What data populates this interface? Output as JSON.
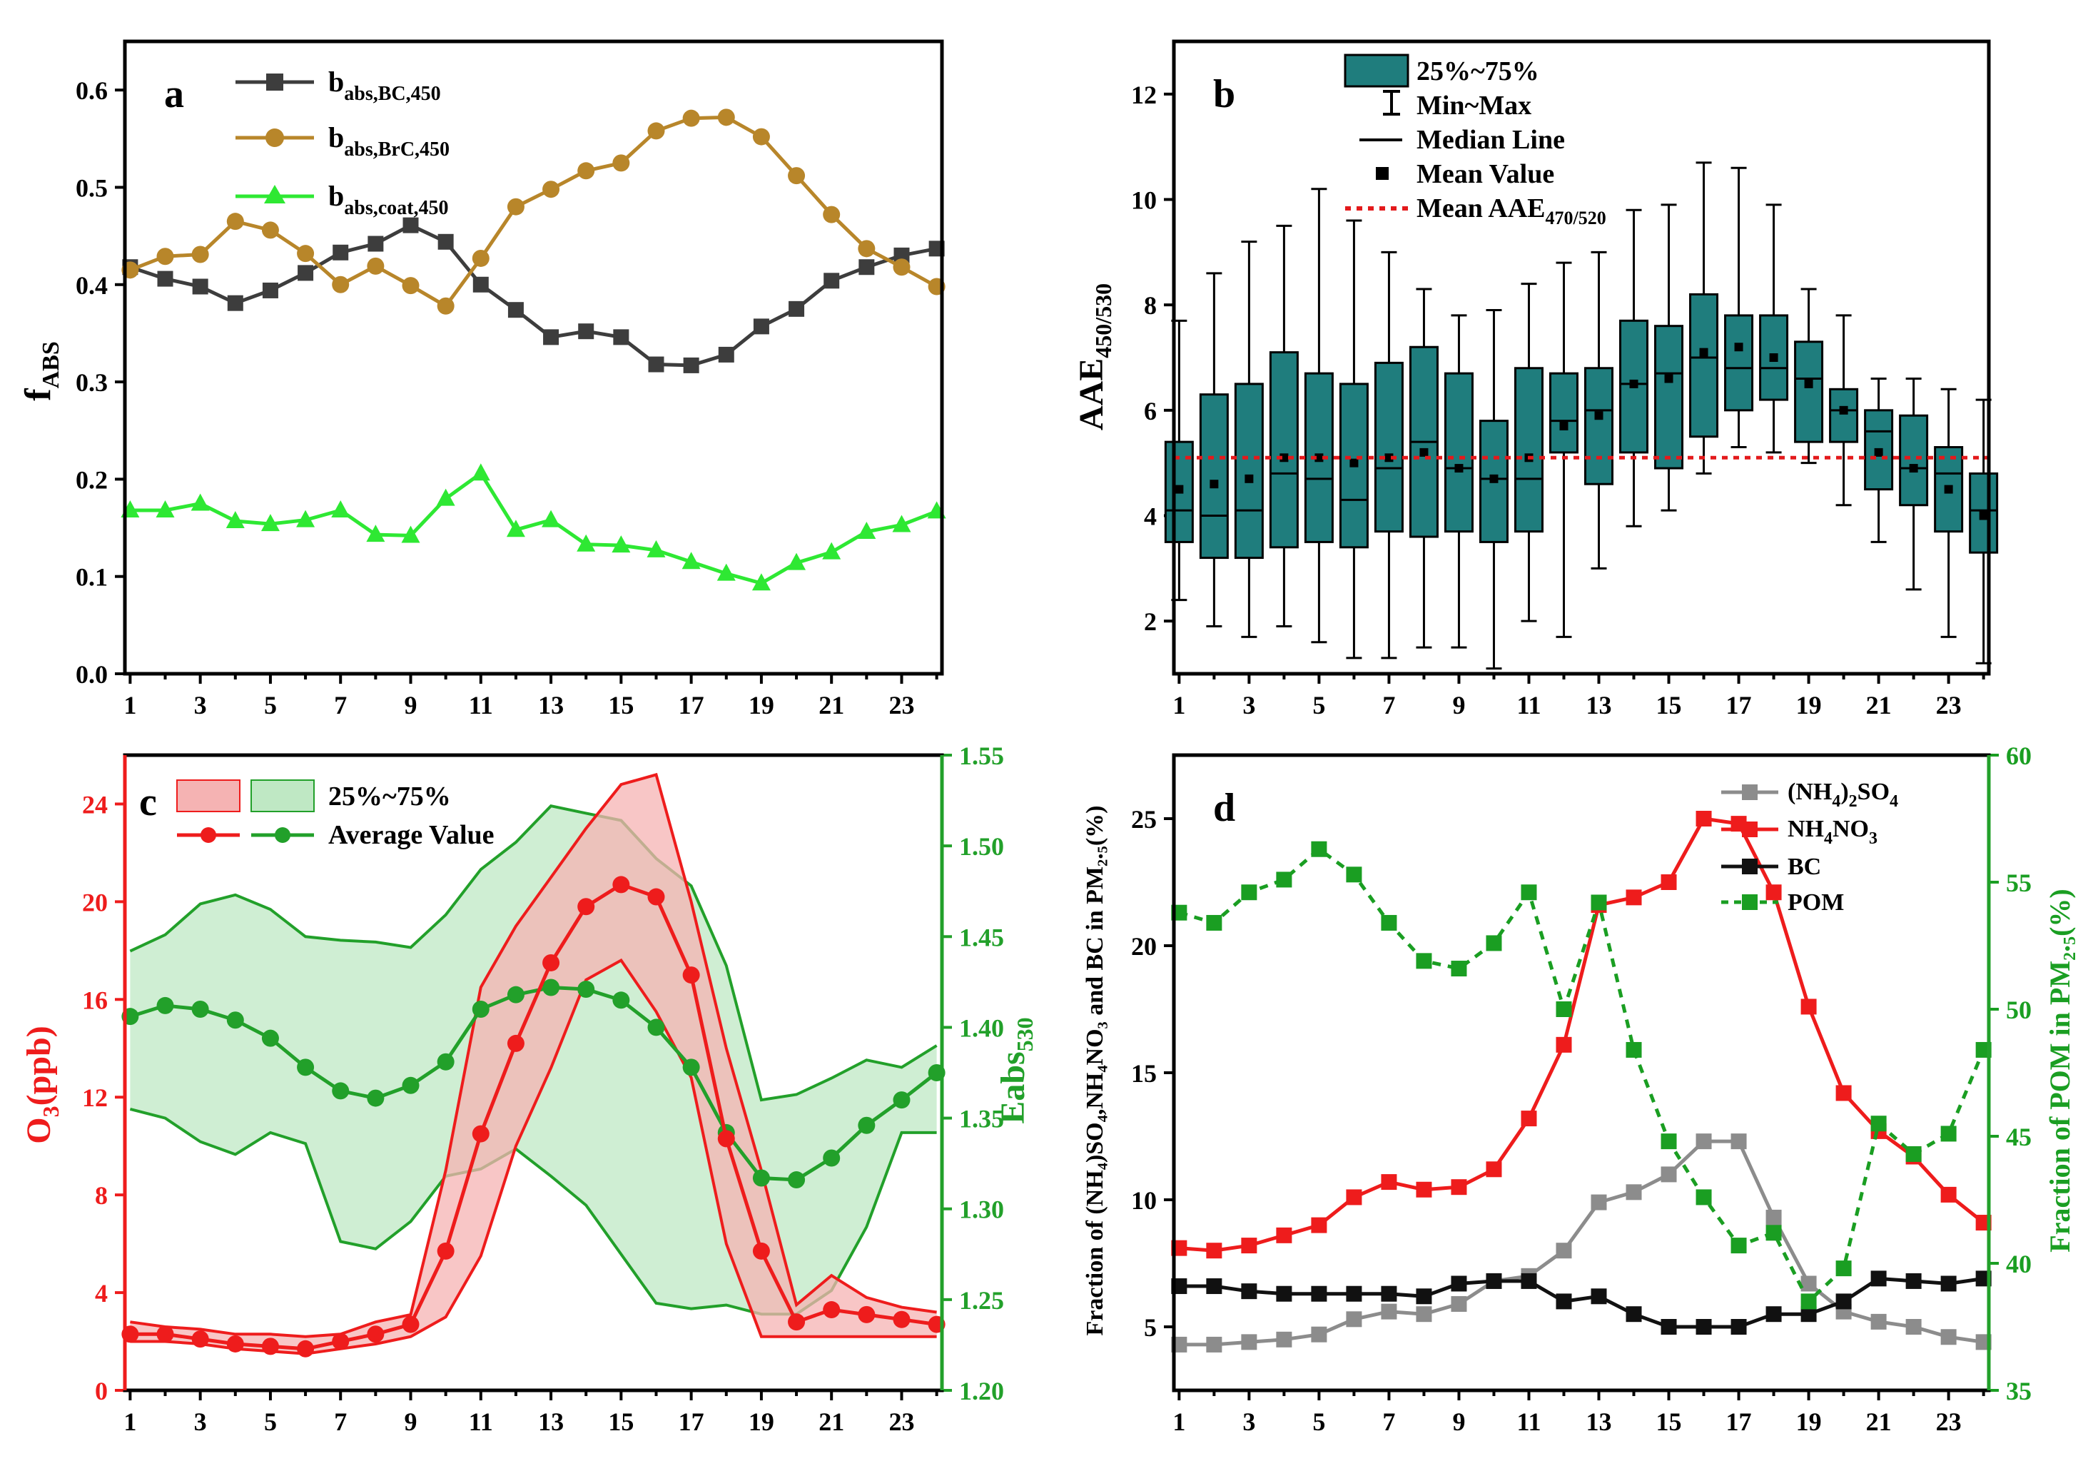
{
  "chart_data": [
    {
      "panel": "a",
      "type": "line",
      "x": [
        1,
        2,
        3,
        4,
        5,
        6,
        7,
        8,
        9,
        10,
        11,
        12,
        13,
        14,
        15,
        16,
        17,
        18,
        19,
        20,
        21,
        22,
        23,
        24
      ],
      "xticks": [
        "1",
        "3",
        "5",
        "7",
        "9",
        "11",
        "13",
        "15",
        "17",
        "19",
        "21",
        "23"
      ],
      "yticks": [
        "0.0",
        "0.1",
        "0.2",
        "0.3",
        "0.4",
        "0.5",
        "0.6"
      ],
      "ylim": [
        0,
        0.65
      ],
      "ylabel": "f",
      "ylabel_sub": "ABS",
      "legend": {
        "BC": {
          "main": "b",
          "sub": "abs,BC,450"
        },
        "BrC": {
          "main": "b",
          "sub": "abs,BrC,450"
        },
        "coat": {
          "main": "b",
          "sub": "abs,coat,450"
        }
      },
      "series": [
        {
          "name": "b_abs,BC,450",
          "color": "#3d3d3d",
          "marker": "square",
          "values": [
            0.418,
            0.406,
            0.398,
            0.381,
            0.394,
            0.412,
            0.433,
            0.442,
            0.461,
            0.444,
            0.4,
            0.374,
            0.346,
            0.352,
            0.346,
            0.318,
            0.317,
            0.328,
            0.357,
            0.375,
            0.404,
            0.418,
            0.43,
            0.437
          ]
        },
        {
          "name": "b_abs,BrC,450",
          "color": "#b8862a",
          "marker": "circle",
          "values": [
            0.415,
            0.429,
            0.431,
            0.465,
            0.456,
            0.432,
            0.4,
            0.419,
            0.399,
            0.378,
            0.427,
            0.48,
            0.498,
            0.517,
            0.525,
            0.558,
            0.571,
            0.572,
            0.552,
            0.512,
            0.472,
            0.437,
            0.418,
            0.398
          ]
        },
        {
          "name": "b_abs,coat,450",
          "color": "#2ee833",
          "marker": "triangle",
          "values": [
            0.168,
            0.168,
            0.175,
            0.157,
            0.154,
            0.158,
            0.168,
            0.143,
            0.142,
            0.18,
            0.206,
            0.148,
            0.158,
            0.133,
            0.132,
            0.127,
            0.115,
            0.103,
            0.093,
            0.114,
            0.125,
            0.146,
            0.153,
            0.167
          ]
        }
      ]
    },
    {
      "panel": "b",
      "type": "box",
      "x": [
        1,
        2,
        3,
        4,
        5,
        6,
        7,
        8,
        9,
        10,
        11,
        12,
        13,
        14,
        15,
        16,
        17,
        18,
        19,
        20,
        21,
        22,
        23,
        24
      ],
      "xticks": [
        "1",
        "3",
        "5",
        "7",
        "9",
        "11",
        "13",
        "15",
        "17",
        "19",
        "21",
        "23"
      ],
      "yticks": [
        "2",
        "4",
        "6",
        "8",
        "10",
        "12"
      ],
      "ylim": [
        1,
        13
      ],
      "ylabel": "AAE",
      "ylabel_sub": "450/530",
      "mean_aae_470_520": 5.1,
      "legend": {
        "box": "25%~75%",
        "whisker": "Min~Max",
        "median": "Median Line",
        "mean": "Mean Value",
        "ref_main": "Mean AAE",
        "ref_sub": "470/520"
      },
      "min": [
        2.4,
        1.9,
        1.7,
        1.9,
        1.6,
        1.3,
        1.3,
        1.5,
        1.5,
        1.1,
        2.0,
        1.7,
        3.0,
        3.8,
        4.1,
        4.8,
        5.3,
        5.2,
        5.0,
        4.2,
        3.5,
        2.6,
        1.7,
        1.2
      ],
      "q1": [
        3.5,
        3.2,
        3.2,
        3.4,
        3.5,
        3.4,
        3.7,
        3.6,
        3.7,
        3.5,
        3.7,
        5.2,
        4.6,
        5.2,
        4.9,
        5.5,
        6.0,
        6.2,
        5.4,
        5.4,
        4.5,
        4.2,
        3.7,
        3.3
      ],
      "median": [
        4.1,
        4.0,
        4.1,
        4.8,
        4.7,
        4.3,
        4.9,
        5.4,
        4.9,
        4.7,
        4.7,
        5.8,
        6.0,
        6.5,
        6.7,
        7.0,
        6.8,
        6.8,
        6.6,
        6.0,
        5.6,
        4.9,
        4.8,
        4.1
      ],
      "q3": [
        5.4,
        6.3,
        6.5,
        7.1,
        6.7,
        6.5,
        6.9,
        7.2,
        6.7,
        5.8,
        6.8,
        6.7,
        6.8,
        7.7,
        7.6,
        8.2,
        7.8,
        7.8,
        7.3,
        6.4,
        6.0,
        5.9,
        5.3,
        4.8
      ],
      "max": [
        7.7,
        8.6,
        9.2,
        9.5,
        10.2,
        9.6,
        9.0,
        8.3,
        7.8,
        7.9,
        8.4,
        8.8,
        9.0,
        9.8,
        9.9,
        10.7,
        10.6,
        9.9,
        8.3,
        7.8,
        6.6,
        6.6,
        6.4,
        6.2
      ],
      "mean": [
        4.5,
        4.6,
        4.7,
        5.1,
        5.1,
        5.0,
        5.1,
        5.2,
        4.9,
        4.7,
        5.1,
        5.7,
        5.9,
        6.5,
        6.6,
        7.1,
        7.2,
        7.0,
        6.5,
        6.0,
        5.2,
        4.9,
        4.5,
        4.0
      ]
    },
    {
      "panel": "c",
      "type": "line",
      "x": [
        1,
        2,
        3,
        4,
        5,
        6,
        7,
        8,
        9,
        10,
        11,
        12,
        13,
        14,
        15,
        16,
        17,
        18,
        19,
        20,
        21,
        22,
        23,
        24
      ],
      "xticks": [
        "1",
        "3",
        "5",
        "7",
        "9",
        "11",
        "13",
        "15",
        "17",
        "19",
        "21",
        "23"
      ],
      "yticks_left": [
        "0",
        "4",
        "8",
        "12",
        "16",
        "20",
        "24"
      ],
      "yticks_right": [
        "1.20",
        "1.25",
        "1.30",
        "1.35",
        "1.40",
        "1.45",
        "1.50",
        "1.55"
      ],
      "ylim_left": [
        0,
        26
      ],
      "ylim_right": [
        1.2,
        1.55
      ],
      "ylabel_left": "O",
      "ylabel_left_sub": "3",
      "ylabel_left_tail": "(ppb)",
      "ylabel_right": "Eabs",
      "ylabel_right_sub": "530",
      "legend": {
        "band": "25%~75%",
        "line": "Average Value"
      },
      "o3": {
        "color": "#ee1c1c",
        "fill": "#f5b3b3",
        "mean": [
          2.3,
          2.3,
          2.1,
          1.9,
          1.8,
          1.7,
          2.0,
          2.3,
          2.7,
          5.7,
          10.5,
          14.2,
          17.5,
          19.8,
          20.7,
          20.2,
          17.0,
          10.3,
          5.7,
          2.8,
          3.3,
          3.1,
          2.9,
          2.7
        ],
        "q1": [
          2.0,
          2.0,
          1.9,
          1.7,
          1.6,
          1.5,
          1.7,
          1.9,
          2.2,
          3.0,
          5.5,
          10.0,
          13.2,
          16.8,
          17.6,
          15.5,
          12.8,
          6.0,
          2.2,
          2.2,
          2.2,
          2.2,
          2.2,
          2.2
        ],
        "q3": [
          2.8,
          2.6,
          2.5,
          2.3,
          2.3,
          2.2,
          2.3,
          2.8,
          3.1,
          9.0,
          16.5,
          19.0,
          21.0,
          23.0,
          24.8,
          25.2,
          20.0,
          14.0,
          9.0,
          3.5,
          4.7,
          3.8,
          3.4,
          3.2
        ]
      },
      "eabs": {
        "color": "#22a02a",
        "fill": "#bfe8c4",
        "mean": [
          1.406,
          1.412,
          1.41,
          1.404,
          1.394,
          1.378,
          1.365,
          1.361,
          1.368,
          1.381,
          1.41,
          1.418,
          1.422,
          1.421,
          1.415,
          1.4,
          1.378,
          1.342,
          1.317,
          1.316,
          1.328,
          1.346,
          1.36,
          1.375
        ],
        "q1": [
          1.355,
          1.35,
          1.337,
          1.33,
          1.342,
          1.336,
          1.282,
          1.278,
          1.293,
          1.318,
          1.322,
          1.333,
          1.318,
          1.302,
          1.275,
          1.248,
          1.245,
          1.247,
          1.242,
          1.242,
          1.255,
          1.29,
          1.342,
          1.342
        ],
        "q3": [
          1.442,
          1.451,
          1.468,
          1.473,
          1.465,
          1.45,
          1.448,
          1.447,
          1.444,
          1.462,
          1.487,
          1.502,
          1.522,
          1.518,
          1.514,
          1.493,
          1.478,
          1.434,
          1.36,
          1.363,
          1.372,
          1.382,
          1.378,
          1.39
        ]
      }
    },
    {
      "panel": "d",
      "type": "line",
      "x": [
        1,
        2,
        3,
        4,
        5,
        6,
        7,
        8,
        9,
        10,
        11,
        12,
        13,
        14,
        15,
        16,
        17,
        18,
        19,
        20,
        21,
        22,
        23,
        24
      ],
      "xticks": [
        "1",
        "3",
        "5",
        "7",
        "9",
        "11",
        "13",
        "15",
        "17",
        "19",
        "21",
        "23"
      ],
      "yticks_left": [
        "5",
        "10",
        "15",
        "20",
        "25"
      ],
      "yticks_right": [
        "35",
        "40",
        "45",
        "50",
        "55",
        "60"
      ],
      "ylim_left": [
        2.5,
        27.5
      ],
      "ylim_right": [
        35,
        60
      ],
      "ylabel_left": "Fraction of (NH₄)SO₄,NH₄NO₃ and BC in PM₂.₅(%)",
      "ylabel_right": "Fraction of POM in PM₂.₅(%)",
      "legend": {
        "nh4so4": {
          "pre": "(NH",
          "s1": "4",
          "mid": ")",
          "s2": "2",
          "post": "SO",
          "s3": "4"
        },
        "nh4no3": {
          "pre": "NH",
          "s1": "4",
          "mid": "NO",
          "s2": "3"
        },
        "bc": "BC",
        "pom": "POM"
      },
      "series": [
        {
          "name": "(NH4)2SO4",
          "color": "#8c8c8c",
          "axis": "left",
          "values": [
            4.3,
            4.3,
            4.4,
            4.5,
            4.7,
            5.3,
            5.6,
            5.5,
            5.9,
            6.8,
            7.0,
            8.0,
            9.9,
            10.3,
            11.0,
            12.3,
            12.3,
            9.3,
            6.7,
            5.6,
            5.2,
            5.0,
            4.6,
            4.4
          ]
        },
        {
          "name": "NH4NO3",
          "color": "#ee1c1c",
          "axis": "left",
          "values": [
            8.1,
            8.0,
            8.2,
            8.6,
            9.0,
            10.1,
            10.7,
            10.4,
            10.5,
            11.2,
            13.2,
            16.1,
            21.6,
            21.9,
            22.5,
            25.0,
            24.8,
            22.1,
            17.6,
            14.2,
            12.7,
            11.7,
            10.2,
            9.1
          ]
        },
        {
          "name": "BC",
          "color": "#111111",
          "axis": "left",
          "values": [
            6.6,
            6.6,
            6.4,
            6.3,
            6.3,
            6.3,
            6.3,
            6.2,
            6.7,
            6.8,
            6.8,
            6.0,
            6.2,
            5.5,
            5.0,
            5.0,
            5.0,
            5.5,
            5.5,
            6.0,
            6.9,
            6.8,
            6.7,
            6.9
          ]
        },
        {
          "name": "POM",
          "color": "#1a9e22",
          "axis": "right",
          "values": [
            53.8,
            53.4,
            54.6,
            55.1,
            56.3,
            55.3,
            53.4,
            51.9,
            51.6,
            52.6,
            54.6,
            50.0,
            54.2,
            48.4,
            44.8,
            42.6,
            40.7,
            41.2,
            38.5,
            39.8,
            45.5,
            44.3,
            45.1,
            48.4
          ]
        }
      ]
    }
  ]
}
